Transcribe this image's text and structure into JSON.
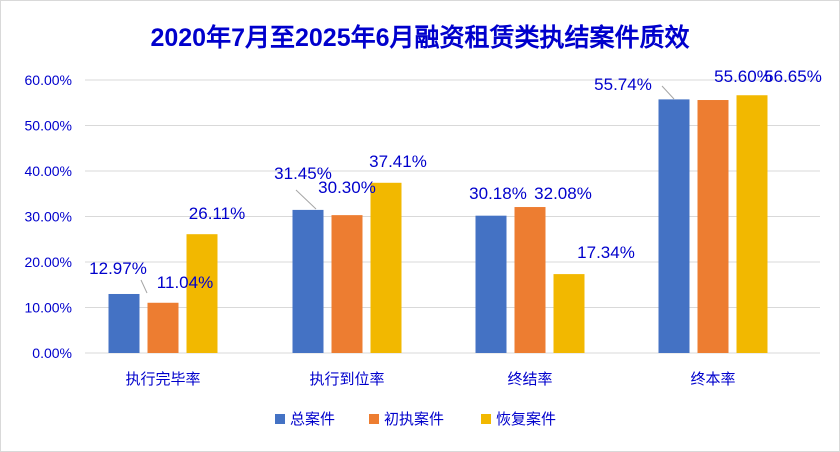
{
  "chart_data": {
    "type": "bar",
    "title": "2020年7月至2025年6月融资租赁类执结案件质效",
    "categories": [
      "执行完毕率",
      "执行到位率",
      "终结率",
      "终本率"
    ],
    "series": [
      {
        "name": "总案件",
        "color": "#4472c4",
        "values": [
          12.97,
          31.45,
          30.18,
          55.74
        ],
        "labels": [
          "12.97%",
          "31.45%",
          "30.18%",
          "55.74%"
        ]
      },
      {
        "name": "初执案件",
        "color": "#ed7d31",
        "values": [
          11.04,
          30.3,
          32.08,
          55.6
        ],
        "labels": [
          "11.04%",
          "30.30%",
          "32.08%",
          "55.60%"
        ]
      },
      {
        "name": "恢复案件",
        "color": "#f2b800",
        "values": [
          26.11,
          37.41,
          17.34,
          56.65
        ],
        "labels": [
          "26.11%",
          "37.41%",
          "17.34%",
          "56.65%"
        ]
      }
    ],
    "yticks": [
      "0.00%",
      "10.00%",
      "20.00%",
      "30.00%",
      "40.00%",
      "50.00%",
      "60.00%"
    ],
    "ylim": [
      0,
      60
    ],
    "grid": true,
    "legend_position": "bottom"
  }
}
